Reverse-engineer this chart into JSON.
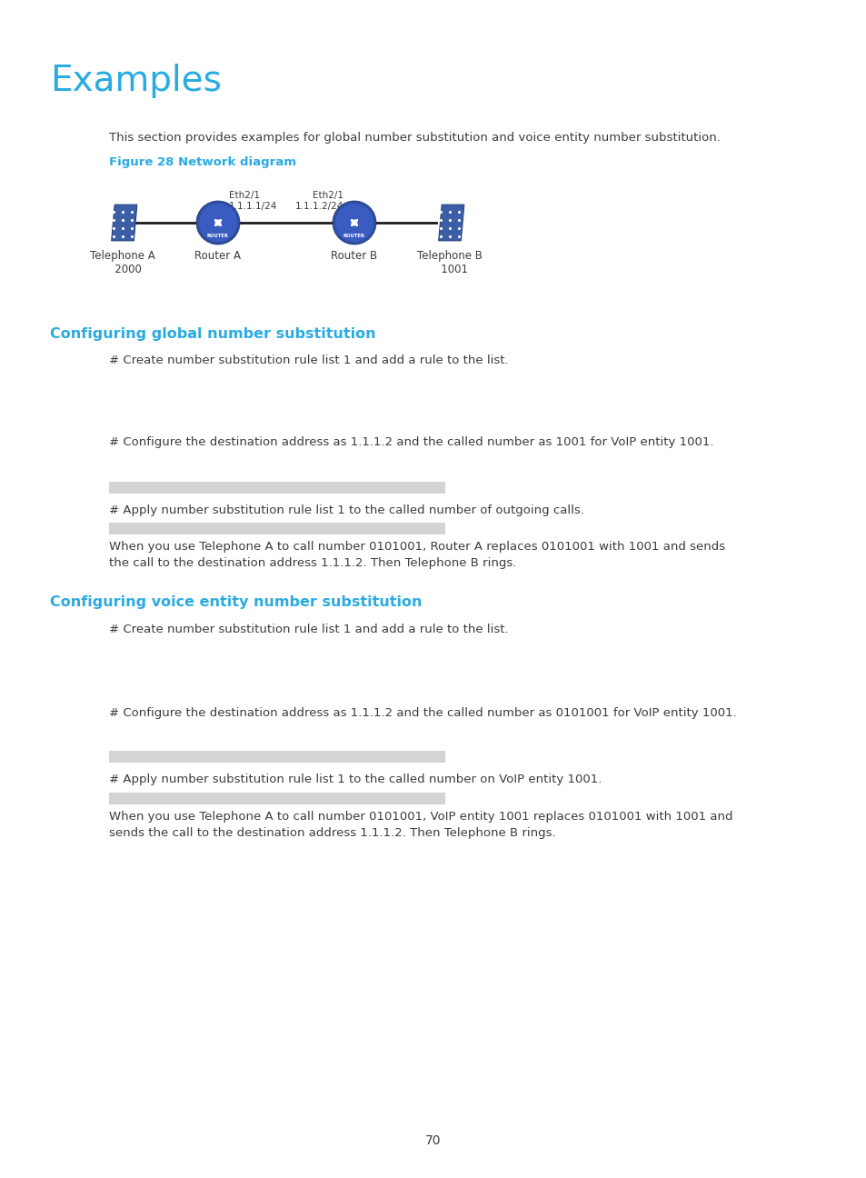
{
  "bg_color": "#ffffff",
  "title": "Examples",
  "title_color": "#29abe2",
  "title_fontsize": 28,
  "body_text_color": "#3c3c3c",
  "cyan_color": "#29abe2",
  "page_number": "70",
  "gray_bar_color": "#d4d4d4",
  "intro_text": "This section provides examples for global number substitution and voice entity number substitution.",
  "figure_label": "Figure 28 Network diagram",
  "section1_heading": "Configuring global number substitution",
  "section2_heading": "Configuring voice entity number substitution",
  "s1_line1": "# Create number substitution rule list 1 and add a rule to the list.",
  "s1_line2": "# Configure the destination address as 1.1.1.2 and the called number as 1001 for VoIP entity 1001.",
  "s1_line3": "# Apply number substitution rule list 1 to the called number of outgoing calls.",
  "s1_para": "When you use Telephone A to call number 0101001, Router A replaces 0101001 with 1001 and sends\nthe call to the destination address 1.1.1.2. Then Telephone B rings.",
  "s2_line1": "# Create number substitution rule list 1 and add a rule to the list.",
  "s2_line2": "# Configure the destination address as 1.1.1.2 and the called number as 0101001 for VoIP entity 1001.",
  "s2_line3": "# Apply number substitution rule list 1 to the called number on VoIP entity 1001.",
  "s2_para": "When you use Telephone A to call number 0101001, VoIP entity 1001 replaces 0101001 with 1001 and\nsends the call to the destination address 1.1.1.2. Then Telephone B rings."
}
